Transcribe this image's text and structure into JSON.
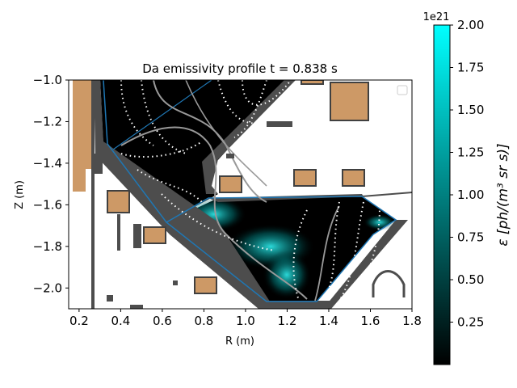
{
  "chart_data": {
    "type": "heatmap",
    "title": "Da emissivity profile t = 0.838 s",
    "xlabel": "R (m)",
    "ylabel": "Z (m)",
    "xlim": [
      0.15,
      1.8
    ],
    "ylim": [
      -2.1,
      -1.0
    ],
    "xticks": [
      "0.2",
      "0.4",
      "0.6",
      "0.8",
      "1.0",
      "1.2",
      "1.4",
      "1.6",
      "1.8"
    ],
    "xtick_values": [
      0.2,
      0.4,
      0.6,
      0.8,
      1.0,
      1.2,
      1.4,
      1.6,
      1.8
    ],
    "yticks": [
      "−1.0",
      "−1.2",
      "−1.4",
      "−1.6",
      "−1.8",
      "−2.0"
    ],
    "ytick_values": [
      -1.0,
      -1.2,
      -1.4,
      -1.6,
      -1.8,
      -2.0
    ],
    "colorbar": {
      "label": "ε [ph/(m³ sr s)]",
      "exponent": "1e21",
      "range": [
        0.0,
        2.0
      ],
      "ticks": [
        "0.25",
        "0.50",
        "0.75",
        "1.00",
        "1.25",
        "1.50",
        "1.75",
        "2.00"
      ],
      "tick_values": [
        0.25,
        0.5,
        0.75,
        1.0,
        1.25,
        1.5,
        1.75,
        2.0
      ],
      "colormap": [
        "#000000",
        "#00ffff"
      ]
    },
    "colors": {
      "vessel": "#4d4d4d",
      "coil_fill": "#cd9966",
      "coil_edge": "#404040",
      "boundary": "#1f77b4",
      "flux_lines": "#ffffff",
      "separatrix": "#999999",
      "emission": "#00e5e5"
    },
    "legend_placement": "top-right"
  }
}
